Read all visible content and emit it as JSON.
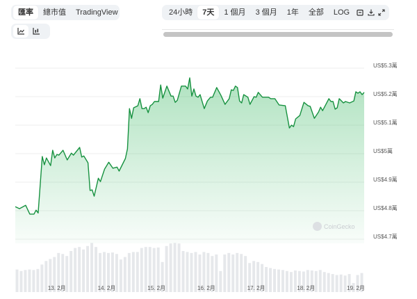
{
  "toolbar_left": {
    "tabs": [
      {
        "label": "匯率",
        "active": true
      },
      {
        "label": "總市值",
        "active": false
      },
      {
        "label": "TradingView",
        "active": false
      }
    ]
  },
  "chart_type_toggle": [
    {
      "icon": "line-chart-icon",
      "active": true
    },
    {
      "icon": "candlestick-chart-icon",
      "active": false
    }
  ],
  "toolbar_range": {
    "ranges": [
      {
        "label": "24小時",
        "active": false
      },
      {
        "label": "7天",
        "active": true
      },
      {
        "label": "1 個月",
        "active": false
      },
      {
        "label": "3 個月",
        "active": false
      },
      {
        "label": "1年",
        "active": false
      },
      {
        "label": "全部",
        "active": false
      },
      {
        "label": "LOG",
        "active": false
      }
    ],
    "icons": [
      "calendar-icon",
      "download-icon",
      "fullscreen-icon"
    ]
  },
  "watermark": "CoinGecko",
  "colors": {
    "line": "#16913f",
    "fill": "#2fb45a",
    "grid": "#eeeeee",
    "volume": "#e6e8eb"
  },
  "chart_data": {
    "type": "area",
    "y_ticks": [
      {
        "value": 53000,
        "label": "US$5.3萬"
      },
      {
        "value": 52000,
        "label": "US$5.2萬"
      },
      {
        "value": 51000,
        "label": "US$5.1萬"
      },
      {
        "value": 50000,
        "label": "US$5萬"
      },
      {
        "value": 49000,
        "label": "US$4.9萬"
      },
      {
        "value": 48000,
        "label": "US$4.8萬"
      },
      {
        "value": 47000,
        "label": "US$4.7萬"
      }
    ],
    "ylim": [
      47000,
      53000
    ],
    "x_ticks": [
      "13. 2月",
      "14. 2月",
      "15. 2月",
      "16. 2月",
      "17. 2月",
      "18. 2月",
      "19. 2月"
    ],
    "x_range": [
      "12.2 04:00",
      "19.2 04:00"
    ],
    "grid": true,
    "price": [
      [
        "12.2 04:00",
        48140
      ],
      [
        "12.2 06:00",
        48070
      ],
      [
        "12.2 09:00",
        48190
      ],
      [
        "12.2 11:00",
        47880
      ],
      [
        "12.2 13:00",
        47880
      ],
      [
        "12.2 14:00",
        48020
      ],
      [
        "12.2 15:00",
        47920
      ],
      [
        "12.2 17:00",
        49900
      ],
      [
        "12.2 18:00",
        49610
      ],
      [
        "12.2 19:00",
        49850
      ],
      [
        "12.2 21:00",
        49580
      ],
      [
        "12.2 22:00",
        50120
      ],
      [
        "12.2 23:00",
        49850
      ],
      [
        "13.2 00:00",
        49970
      ],
      [
        "13.2 01:00",
        49950
      ],
      [
        "13.2 03:00",
        50120
      ],
      [
        "13.2 05:00",
        49780
      ],
      [
        "13.2 07:00",
        50020
      ],
      [
        "13.2 08:00",
        49950
      ],
      [
        "13.2 11:00",
        50220
      ],
      [
        "13.2 12:00",
        49880
      ],
      [
        "13.2 13:00",
        49920
      ],
      [
        "13.2 15:00",
        49680
      ],
      [
        "13.2 16:00",
        48710
      ],
      [
        "13.2 17:00",
        48730
      ],
      [
        "13.2 18:00",
        48510
      ],
      [
        "13.2 20:00",
        49140
      ],
      [
        "13.2 21:00",
        49020
      ],
      [
        "13.2 23:00",
        49460
      ],
      [
        "14.2 00:00",
        49580
      ],
      [
        "14.2 01:00",
        49700
      ],
      [
        "14.2 03:00",
        49490
      ],
      [
        "14.2 05:00",
        49530
      ],
      [
        "14.2 06:00",
        49390
      ],
      [
        "14.2 09:00",
        49830
      ],
      [
        "14.2 10:00",
        50170
      ],
      [
        "14.2 11:00",
        51580
      ],
      [
        "14.2 12:00",
        51240
      ],
      [
        "14.2 13:00",
        51610
      ],
      [
        "14.2 15:00",
        51680
      ],
      [
        "14.2 16:00",
        51930
      ],
      [
        "14.2 17:00",
        51580
      ],
      [
        "14.2 18:00",
        51580
      ],
      [
        "14.2 19:00",
        51630
      ],
      [
        "14.2 20:00",
        51440
      ],
      [
        "14.2 21:00",
        51680
      ],
      [
        "14.2 22:00",
        51730
      ],
      [
        "14.2 23:00",
        51830
      ],
      [
        "15.2 01:00",
        51830
      ],
      [
        "15.2 02:00",
        52410
      ],
      [
        "15.2 03:00",
        51950
      ],
      [
        "15.2 05:00",
        52370
      ],
      [
        "15.2 07:00",
        52020
      ],
      [
        "15.2 08:00",
        52020
      ],
      [
        "15.2 09:00",
        51800
      ],
      [
        "15.2 10:00",
        51870
      ],
      [
        "15.2 12:00",
        52370
      ],
      [
        "15.2 14:00",
        52370
      ],
      [
        "15.2 15:00",
        52270
      ],
      [
        "15.2 16:00",
        52660
      ],
      [
        "15.2 17:00",
        52020
      ],
      [
        "15.2 18:00",
        52270
      ],
      [
        "15.2 19:00",
        52020
      ],
      [
        "15.2 20:00",
        51980
      ],
      [
        "15.2 21:00",
        52070
      ],
      [
        "15.2 23:00",
        51580
      ],
      [
        "16.2 00:30",
        51850
      ],
      [
        "16.2 02:00",
        51980
      ],
      [
        "16.2 03:00",
        51980
      ],
      [
        "16.2 05:00",
        52320
      ],
      [
        "16.2 07:00",
        52050
      ],
      [
        "16.2 09:00",
        51730
      ],
      [
        "16.2 11:00",
        51930
      ],
      [
        "16.2 12:00",
        52240
      ],
      [
        "16.2 13:00",
        52220
      ],
      [
        "16.2 14:00",
        52370
      ],
      [
        "16.2 15:00",
        52320
      ],
      [
        "16.2 16:00",
        51850
      ],
      [
        "16.2 17:00",
        51780
      ],
      [
        "16.2 18:00",
        52070
      ],
      [
        "16.2 20:00",
        51980
      ],
      [
        "16.2 21:00",
        51730
      ],
      [
        "16.2 23:00",
        52000
      ],
      [
        "17.2 00:00",
        51980
      ],
      [
        "17.2 01:00",
        52150
      ],
      [
        "17.2 03:00",
        51980
      ],
      [
        "17.2 06:00",
        51980
      ],
      [
        "17.2 07:00",
        51930
      ],
      [
        "17.2 09:00",
        51930
      ],
      [
        "17.2 11:00",
        51710
      ],
      [
        "17.2 14:00",
        51680
      ],
      [
        "17.2 16:00",
        50900
      ],
      [
        "17.2 17:00",
        51000
      ],
      [
        "17.2 18:00",
        50950
      ],
      [
        "17.2 19:00",
        51220
      ],
      [
        "17.2 21:00",
        51340
      ],
      [
        "17.2 23:00",
        51800
      ],
      [
        "18.2 01:00",
        51680
      ],
      [
        "18.2 02:00",
        51660
      ],
      [
        "18.2 04:00",
        51240
      ],
      [
        "18.2 06:00",
        51460
      ],
      [
        "18.2 07:00",
        51630
      ],
      [
        "18.2 08:00",
        51510
      ],
      [
        "18.2 11:00",
        51930
      ],
      [
        "18.2 12:00",
        51830
      ],
      [
        "18.2 13:00",
        51830
      ],
      [
        "18.2 14:00",
        51560
      ],
      [
        "18.2 15:00",
        51610
      ],
      [
        "18.2 16:00",
        51930
      ],
      [
        "18.2 18:00",
        51780
      ],
      [
        "18.2 19:00",
        51830
      ],
      [
        "18.2 21:00",
        51780
      ],
      [
        "18.2 23:00",
        51850
      ],
      [
        "19.2 00:00",
        52170
      ],
      [
        "19.2 01:00",
        52120
      ],
      [
        "19.2 02:00",
        52170
      ],
      [
        "19.2 03:00",
        52070
      ],
      [
        "19.2 04:00",
        52150
      ]
    ],
    "volume_relative": [
      45,
      42,
      44,
      45,
      44,
      46,
      55,
      62,
      66,
      70,
      78,
      76,
      72,
      82,
      88,
      90,
      85,
      92,
      98,
      90,
      78,
      80,
      78,
      79,
      76,
      65,
      70,
      78,
      80,
      80,
      88,
      90,
      90,
      88,
      89,
      60,
      92,
      97,
      98,
      97,
      82,
      80,
      78,
      80,
      75,
      80,
      78,
      72,
      75,
      42,
      75,
      78,
      75,
      78,
      76,
      72,
      58,
      62,
      60,
      56,
      50,
      48,
      46,
      45,
      44,
      42,
      40,
      43,
      42,
      41,
      44,
      43,
      42,
      44,
      40,
      38,
      36,
      34,
      35,
      33,
      36,
      18,
      34,
      38
    ]
  }
}
